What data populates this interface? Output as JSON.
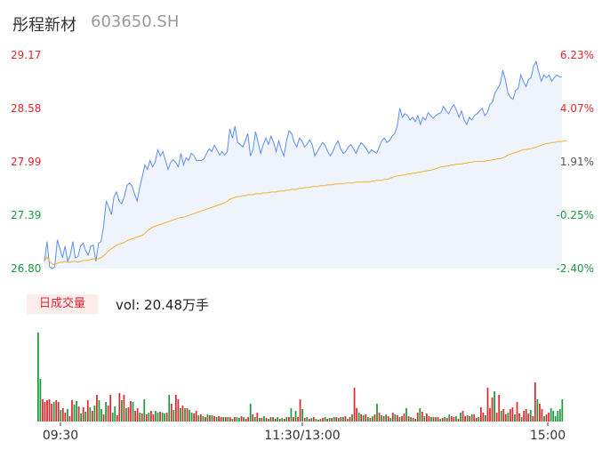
{
  "header": {
    "name": "彤程新材",
    "code": "603650.SH"
  },
  "volume_panel": {
    "badge": "日成交量",
    "label": "vol: 20.48万手"
  },
  "colors": {
    "price": "#5b8ff0",
    "avg": "#f2b233",
    "up": "#e0282e",
    "down": "#1a9b3c",
    "neutral": "#555555",
    "area": "#eef3fc"
  },
  "chart_data": [
    {
      "type": "line",
      "title": "",
      "xlabel": "",
      "ylabel": "",
      "x_ticks": [
        "09:30",
        "11:30/13:00",
        "15:00"
      ],
      "y_ticks_left": [
        "29.17",
        "28.58",
        "27.99",
        "27.39",
        "26.80"
      ],
      "y_ticks_right": [
        "6.23%",
        "4.07%",
        "1.91%",
        "-0.25%",
        "-2.40%"
      ],
      "ylim": [
        26.8,
        29.17
      ],
      "prev_close": 27.455,
      "series": [
        {
          "values": [
            26.88,
            27.1,
            26.82,
            26.8,
            26.82,
            27.12,
            27.02,
            26.92,
            27.05,
            26.88,
            26.95,
            27.1,
            26.92,
            26.93,
            27.05,
            27.08,
            27.0,
            26.95,
            27.05,
            27.06,
            26.88,
            27.08,
            27.1,
            27.28,
            27.55,
            27.48,
            27.4,
            27.6,
            27.65,
            27.55,
            27.52,
            27.6,
            27.72,
            27.75,
            27.72,
            27.63,
            27.55,
            27.7,
            27.82,
            27.95,
            27.9,
            28.0,
            27.93,
            27.98,
            28.12,
            28.05,
            28.1,
            28.0,
            27.9,
            27.98,
            28.01,
            27.98,
            27.93,
            28.08,
            27.95,
            28.03,
            28.0,
            28.08,
            28.06,
            28.0,
            28.0,
            28.0,
            28.02,
            28.08,
            28.13,
            28.1,
            28.17,
            28.12,
            28.06,
            28.1,
            28.06,
            28.1,
            28.35,
            28.25,
            28.38,
            28.2,
            28.18,
            28.15,
            28.22,
            28.3,
            28.05,
            28.12,
            28.32,
            28.2,
            28.08,
            28.18,
            28.25,
            28.18,
            28.27,
            28.2,
            28.1,
            28.22,
            28.12,
            28.05,
            28.22,
            28.33,
            28.3,
            28.2,
            28.15,
            28.25,
            28.22,
            28.15,
            28.18,
            28.23,
            28.18,
            28.05,
            28.1,
            28.15,
            28.2,
            28.17,
            28.1,
            28.05,
            28.1,
            28.17,
            28.22,
            28.13,
            28.08,
            28.1,
            28.15,
            28.18,
            28.13,
            28.08,
            28.15,
            28.2,
            28.17,
            28.13,
            28.08,
            28.12,
            28.1,
            28.08,
            28.15,
            28.22,
            28.25,
            28.2,
            28.22,
            28.27,
            28.3,
            28.38,
            28.58,
            28.48,
            28.52,
            28.5,
            28.45,
            28.48,
            28.43,
            28.5,
            28.4,
            28.48,
            28.45,
            28.53,
            28.5,
            28.47,
            28.5,
            28.52,
            28.53,
            28.6,
            28.55,
            28.52,
            28.58,
            28.62,
            28.56,
            28.48,
            28.55,
            28.45,
            28.4,
            28.48,
            28.45,
            28.5,
            28.52,
            28.55,
            28.58,
            28.5,
            28.53,
            28.62,
            28.65,
            28.75,
            28.8,
            28.85,
            29.0,
            28.9,
            28.75,
            28.7,
            28.68,
            28.78,
            28.8,
            28.95,
            28.88,
            28.82,
            28.9,
            28.92,
            29.05,
            29.1,
            28.98,
            28.88,
            28.95,
            28.92,
            28.95,
            28.88,
            28.92,
            28.95,
            28.93,
            28.93
          ]
        },
        {
          "values": [
            26.88,
            26.93,
            26.88,
            26.85,
            26.84,
            26.86,
            26.87,
            26.87,
            26.88,
            26.87,
            26.87,
            26.88,
            26.88,
            26.87,
            26.88,
            26.89,
            26.89,
            26.89,
            26.9,
            26.91,
            26.9,
            26.91,
            26.92,
            26.94,
            26.97,
            27.0,
            27.02,
            27.04,
            27.06,
            27.07,
            27.08,
            27.09,
            27.11,
            27.12,
            27.13,
            27.14,
            27.15,
            27.16,
            27.17,
            27.19,
            27.22,
            27.24,
            27.26,
            27.27,
            27.28,
            27.29,
            27.3,
            27.31,
            27.32,
            27.33,
            27.34,
            27.35,
            27.36,
            27.37,
            27.37,
            27.38,
            27.39,
            27.4,
            27.41,
            27.42,
            27.43,
            27.44,
            27.45,
            27.46,
            27.47,
            27.48,
            27.49,
            27.5,
            27.51,
            27.52,
            27.53,
            27.55,
            27.57,
            27.58,
            27.59,
            27.6,
            27.6,
            27.61,
            27.61,
            27.62,
            27.62,
            27.62,
            27.63,
            27.63,
            27.63,
            27.64,
            27.64,
            27.64,
            27.65,
            27.65,
            27.65,
            27.66,
            27.66,
            27.66,
            27.67,
            27.67,
            27.68,
            27.68,
            27.68,
            27.69,
            27.69,
            27.7,
            27.7,
            27.7,
            27.71,
            27.71,
            27.71,
            27.72,
            27.72,
            27.72,
            27.73,
            27.73,
            27.73,
            27.74,
            27.74,
            27.74,
            27.74,
            27.75,
            27.75,
            27.75,
            27.75,
            27.76,
            27.76,
            27.76,
            27.76,
            27.76,
            27.76,
            27.77,
            27.77,
            27.78,
            27.78,
            27.78,
            27.79,
            27.79,
            27.8,
            27.81,
            27.82,
            27.83,
            27.83,
            27.84,
            27.84,
            27.85,
            27.85,
            27.86,
            27.86,
            27.87,
            27.87,
            27.88,
            27.88,
            27.89,
            27.89,
            27.9,
            27.91,
            27.92,
            27.93,
            27.93,
            27.94,
            27.94,
            27.95,
            27.95,
            27.96,
            27.96,
            27.96,
            27.97,
            27.97,
            27.98,
            27.98,
            27.99,
            27.99,
            27.99,
            27.99,
            27.99,
            28.0,
            28.0,
            28.01,
            28.01,
            28.02,
            28.02,
            28.03,
            28.04,
            28.06,
            28.07,
            28.08,
            28.09,
            28.1,
            28.11,
            28.12,
            28.12,
            28.13,
            28.13,
            28.14,
            28.15,
            28.16,
            28.17,
            28.18,
            28.19,
            28.19,
            28.2,
            28.2,
            28.21,
            28.21,
            28.21,
            28.22,
            28.22
          ]
        }
      ]
    },
    {
      "type": "bar",
      "title": "",
      "xlabel": "",
      "ylabel": "",
      "series": [
        {
          "values": [
            100,
            48,
            25,
            22,
            24,
            25,
            20,
            22,
            24,
            22,
            13,
            15,
            10,
            14,
            6,
            24,
            19,
            23,
            17,
            9,
            16,
            11,
            24,
            16,
            12,
            18,
            30,
            24,
            14,
            8,
            22,
            18,
            30,
            10,
            17,
            7,
            32,
            24,
            30,
            15,
            16,
            23,
            22,
            12,
            15,
            10,
            9,
            25,
            8,
            10,
            12,
            8,
            12,
            10,
            11,
            10,
            9,
            10,
            30,
            20,
            13,
            30,
            25,
            15,
            18,
            15,
            15,
            13,
            10,
            9,
            12,
            7,
            8,
            6,
            5,
            8,
            7,
            7,
            6,
            5,
            6,
            5,
            5,
            5,
            5,
            5,
            3,
            5,
            5,
            4,
            6,
            5,
            3,
            5,
            20,
            8,
            5,
            10,
            4,
            4,
            6,
            4,
            3,
            5,
            5,
            3,
            5,
            3,
            4,
            3,
            5,
            5,
            15,
            5,
            12,
            5,
            25,
            14,
            4,
            5,
            3,
            4,
            5,
            3,
            2,
            3,
            4,
            5,
            3,
            4,
            4,
            5,
            5,
            4,
            5,
            5,
            6,
            3,
            5,
            8,
            38,
            15,
            10,
            8,
            7,
            8,
            5,
            4,
            6,
            8,
            20,
            10,
            7,
            6,
            8,
            6,
            4,
            10,
            8,
            7,
            5,
            6,
            9,
            15,
            6,
            5,
            4,
            3,
            10,
            15,
            11,
            6,
            9,
            6,
            5,
            5,
            5,
            5,
            3,
            4,
            5,
            4,
            8,
            6,
            5,
            6,
            3,
            10,
            12,
            6,
            7,
            6,
            8,
            8,
            4,
            5,
            16,
            10,
            7,
            38,
            15,
            27,
            34,
            10,
            30,
            12,
            14,
            8,
            10,
            14,
            16,
            8,
            22,
            9,
            5,
            12,
            14,
            9,
            13,
            6,
            44,
            25,
            20,
            14,
            6,
            8,
            10,
            15,
            12,
            6,
            12,
            14,
            25
          ],
          "colors": [
            "down",
            "down",
            "up",
            "up",
            "up",
            "up",
            "up",
            "down",
            "up",
            "up",
            "down",
            "up",
            "up",
            "down",
            "up",
            "up",
            "down",
            "down",
            "up",
            "down",
            "up",
            "down",
            "up",
            "down",
            "up",
            "down",
            "up",
            "down",
            "down",
            "up",
            "down",
            "up",
            "up",
            "down",
            "down",
            "up",
            "up",
            "down",
            "up",
            "down",
            "up",
            "up",
            "down",
            "up",
            "up",
            "down",
            "up",
            "down",
            "up",
            "down",
            "up",
            "up",
            "down",
            "down",
            "up",
            "down",
            "down",
            "up",
            "down",
            "up",
            "down",
            "up",
            "up",
            "down",
            "up",
            "down",
            "up",
            "down",
            "down",
            "up",
            "up",
            "down",
            "up",
            "down",
            "up",
            "down",
            "up",
            "down",
            "up",
            "down",
            "up",
            "up",
            "down",
            "up",
            "down",
            "up",
            "down",
            "up",
            "down",
            "down",
            "up",
            "down",
            "up",
            "up",
            "down",
            "up",
            "down",
            "up",
            "down",
            "up",
            "down",
            "up",
            "down",
            "up",
            "down",
            "up",
            "down",
            "up",
            "down",
            "up",
            "down",
            "up",
            "down",
            "up",
            "down",
            "up",
            "up",
            "down",
            "up",
            "down",
            "up",
            "down",
            "up",
            "down",
            "up",
            "down",
            "up",
            "down",
            "up",
            "down",
            "up",
            "down",
            "up",
            "down",
            "up",
            "down",
            "up",
            "down",
            "up",
            "down",
            "up",
            "up",
            "down",
            "up",
            "down",
            "up",
            "down",
            "up",
            "down",
            "up",
            "down",
            "up",
            "down",
            "up",
            "down",
            "up",
            "down",
            "up",
            "down",
            "up",
            "down",
            "up",
            "up",
            "down",
            "up",
            "down",
            "up",
            "down",
            "up",
            "down",
            "up",
            "down",
            "up",
            "up",
            "down",
            "up",
            "down",
            "up",
            "down",
            "up",
            "down",
            "up",
            "down",
            "up",
            "up",
            "down",
            "up",
            "down",
            "up",
            "up",
            "down",
            "up",
            "down",
            "up",
            "up",
            "down",
            "up",
            "up",
            "down",
            "up",
            "up",
            "up",
            "down",
            "up",
            "up",
            "down",
            "up",
            "up",
            "down",
            "up",
            "up",
            "down",
            "up",
            "up",
            "down",
            "up",
            "up",
            "up",
            "down",
            "up",
            "up",
            "down",
            "up",
            "up",
            "down",
            "up",
            "up",
            "down"
          ]
        }
      ]
    }
  ]
}
